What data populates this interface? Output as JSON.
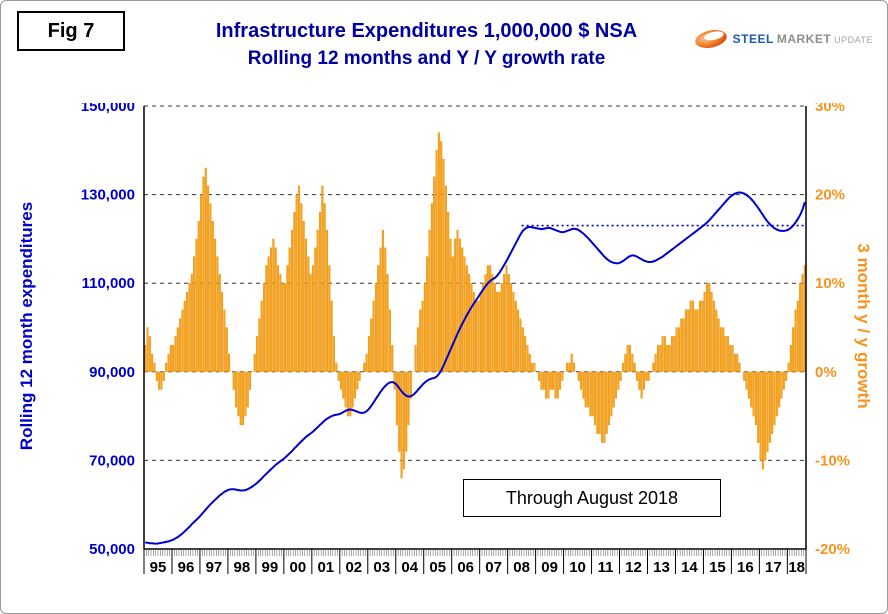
{
  "figure_label": "Fig 7",
  "title_line1": "Infrastructure Expenditures 1,000,000 $ NSA",
  "title_line2": "Rolling 12 months and Y / Y growth rate",
  "logo": {
    "steel": "STEEL",
    "market": "MARKET",
    "update": "UPDATE"
  },
  "annotation": {
    "text": "Through August 2018"
  },
  "colors": {
    "title": "#0000A0",
    "left_axis_text": "#0000CC",
    "right_axis_text": "#F7941D",
    "bar": "#FAA21B",
    "bar_stroke": "#DA8A00",
    "line": "#0000D0",
    "reference": "#0000CC",
    "grid": "#333333",
    "axis": "#000000"
  },
  "chart_data": {
    "type": "combo bar+line",
    "title": "Infrastructure Expenditures 1,000,000 $ NSA — Rolling 12 months and Y / Y growth rate",
    "x_start": "1995-01",
    "x_end": "2018-08",
    "x_tick_labels": [
      "95",
      "96",
      "97",
      "98",
      "99",
      "00",
      "01",
      "02",
      "03",
      "04",
      "05",
      "06",
      "07",
      "08",
      "09",
      "10",
      "11",
      "12",
      "13",
      "14",
      "15",
      "16",
      "17",
      "18"
    ],
    "left_axis": {
      "label": "Rolling 12 month expenditures",
      "min": 50000,
      "max": 150000,
      "tick_values": [
        150000,
        130000,
        110000,
        90000,
        70000,
        50000
      ],
      "tick_labels": [
        "150,000",
        "130,000",
        "110,000",
        "90,000",
        "70,000",
        "50,000"
      ]
    },
    "right_axis": {
      "label": "3 month y / y growth",
      "min": -20,
      "max": 30,
      "tick_values": [
        30,
        20,
        10,
        0,
        -10,
        -20
      ],
      "tick_labels": [
        "30%",
        "20%",
        "10%",
        "0%",
        "-10%",
        "-20%"
      ]
    },
    "reference_line": {
      "value": 123000,
      "start_index": 162,
      "style": "dotted",
      "color": "#0000CC"
    },
    "series": [
      {
        "name": "Rolling 12 month expenditures",
        "type": "line",
        "axis": "left",
        "color": "#0000D0",
        "values": [
          51500,
          51400,
          51300,
          51300,
          51200,
          51200,
          51300,
          51400,
          51500,
          51600,
          51700,
          51900,
          52100,
          52400,
          52700,
          53100,
          53500,
          54000,
          54500,
          55000,
          55600,
          56100,
          56600,
          57100,
          57700,
          58300,
          58900,
          59500,
          60100,
          60600,
          61100,
          61600,
          62100,
          62500,
          62900,
          63200,
          63400,
          63500,
          63500,
          63400,
          63300,
          63200,
          63200,
          63300,
          63500,
          63800,
          64100,
          64500,
          64900,
          65400,
          65900,
          66500,
          67000,
          67500,
          68000,
          68500,
          69000,
          69400,
          69800,
          70200,
          70600,
          71100,
          71600,
          72100,
          72700,
          73200,
          73800,
          74300,
          74800,
          75300,
          75700,
          76100,
          76500,
          77000,
          77500,
          78000,
          78500,
          79000,
          79400,
          79700,
          80000,
          80200,
          80300,
          80400,
          80600,
          80900,
          81200,
          81400,
          81500,
          81400,
          81200,
          81000,
          80800,
          80700,
          80800,
          81100,
          81600,
          82300,
          83100,
          83900,
          84700,
          85500,
          86200,
          86800,
          87300,
          87600,
          87700,
          87500,
          87000,
          86300,
          85600,
          85000,
          84600,
          84400,
          84500,
          84800,
          85300,
          85900,
          86500,
          87100,
          87600,
          88000,
          88300,
          88500,
          88600,
          88900,
          89500,
          90300,
          91400,
          92600,
          93800,
          95000,
          96200,
          97400,
          98600,
          99700,
          100800,
          101800,
          102800,
          103700,
          104600,
          105400,
          106200,
          107000,
          107800,
          108600,
          109300,
          110000,
          110500,
          110900,
          111200,
          111700,
          112400,
          113200,
          114100,
          115000,
          116000,
          117000,
          118000,
          119000,
          120000,
          121000,
          121800,
          122300,
          122600,
          122700,
          122600,
          122500,
          122400,
          122300,
          122200,
          122300,
          122400,
          122500,
          122400,
          122200,
          122000,
          121800,
          121600,
          121500,
          121600,
          121800,
          122000,
          122200,
          122300,
          122200,
          122000,
          121600,
          121200,
          120700,
          120200,
          119600,
          119000,
          118400,
          117800,
          117200,
          116600,
          116000,
          115500,
          115100,
          114800,
          114600,
          114500,
          114500,
          114700,
          115000,
          115400,
          115800,
          116100,
          116300,
          116200,
          116000,
          115700,
          115400,
          115100,
          114900,
          114800,
          114800,
          114900,
          115100,
          115400,
          115700,
          116000,
          116400,
          116800,
          117200,
          117600,
          118000,
          118400,
          118800,
          119200,
          119600,
          120000,
          120400,
          120800,
          121200,
          121600,
          122000,
          122400,
          122800,
          123200,
          123700,
          124200,
          124800,
          125400,
          126000,
          126600,
          127200,
          127800,
          128400,
          129000,
          129500,
          129900,
          130200,
          130400,
          130500,
          130400,
          130200,
          129900,
          129500,
          129000,
          128400,
          127700,
          127000,
          126200,
          125400,
          124600,
          123900,
          123300,
          122800,
          122400,
          122100,
          121900,
          121800,
          121800,
          121900,
          122100,
          122500,
          123000,
          123700,
          124500,
          125400,
          126600,
          128300
        ]
      },
      {
        "name": "3 month y / y growth",
        "type": "bar",
        "axis": "right",
        "color": "#FAA21B",
        "values": [
          3,
          5,
          4,
          2,
          1,
          -1,
          -2,
          -2,
          -1,
          1,
          2,
          3,
          3,
          4,
          5,
          6,
          7,
          8,
          9,
          10,
          11,
          13,
          15,
          17,
          20,
          22,
          23,
          21,
          19,
          17,
          15,
          13,
          11,
          9,
          7,
          5,
          2,
          0,
          -2,
          -4,
          -5,
          -6,
          -6,
          -5,
          -4,
          -2,
          0,
          2,
          4,
          6,
          8,
          10,
          12,
          13,
          14,
          15,
          14,
          12,
          11,
          10,
          10,
          12,
          14,
          16,
          18,
          20,
          21,
          19,
          17,
          15,
          13,
          11,
          12,
          14,
          16,
          18,
          21,
          19,
          16,
          12,
          8,
          4,
          1,
          -1,
          -2,
          -3,
          -4,
          -5,
          -5,
          -4,
          -3,
          -2,
          -1,
          0,
          1,
          2,
          4,
          6,
          8,
          10,
          12,
          14,
          16,
          14,
          11,
          7,
          3,
          -2,
          -6,
          -9,
          -12,
          -11,
          -9,
          -6,
          -3,
          0,
          3,
          5,
          7,
          8,
          10,
          13,
          16,
          19,
          22,
          25,
          27,
          26,
          24,
          21,
          18,
          15,
          13,
          15,
          16,
          15,
          14,
          13,
          12,
          11,
          10,
          9,
          8,
          8,
          9,
          10,
          11,
          12,
          12,
          11,
          10,
          9,
          9,
          10,
          11,
          12,
          11,
          10,
          9,
          8,
          7,
          6,
          5,
          4,
          3,
          2,
          1,
          1,
          0,
          -1,
          -2,
          -2,
          -3,
          -3,
          -2,
          -2,
          -3,
          -3,
          -2,
          -1,
          0,
          1,
          1,
          2,
          1,
          0,
          -1,
          -2,
          -3,
          -4,
          -4,
          -5,
          -5,
          -6,
          -7,
          -7,
          -8,
          -8,
          -7,
          -6,
          -5,
          -4,
          -3,
          -2,
          -1,
          1,
          2,
          3,
          3,
          2,
          1,
          -1,
          -2,
          -3,
          -2,
          -1,
          -1,
          0,
          1,
          2,
          3,
          3,
          4,
          4,
          3,
          3,
          4,
          4,
          5,
          5,
          6,
          6,
          7,
          7,
          8,
          8,
          7,
          7,
          8,
          8,
          9,
          10,
          10,
          9,
          8,
          7,
          6,
          5,
          5,
          4,
          4,
          3,
          3,
          2,
          2,
          1,
          0,
          -1,
          -2,
          -3,
          -4,
          -5,
          -6,
          -8,
          -10,
          -11,
          -10,
          -9,
          -8,
          -7,
          -6,
          -5,
          -4,
          -3,
          -2,
          -1,
          1,
          3,
          5,
          7,
          8,
          10,
          11,
          12
        ]
      }
    ]
  }
}
